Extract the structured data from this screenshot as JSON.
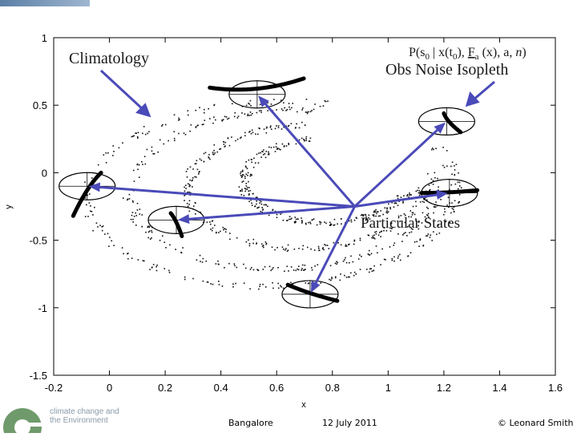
{
  "chart_data": {
    "type": "scatter",
    "xlabel": "x",
    "ylabel": "y",
    "xlim": [
      -0.2,
      1.6
    ],
    "ylim": [
      -1.5,
      1
    ],
    "xticks": [
      "-0.2",
      "0",
      "0.2",
      "0.4",
      "0.6",
      "0.8",
      "1",
      "1.2",
      "1.4",
      "1.6"
    ],
    "yticks": [
      "1",
      "0.5",
      "0",
      "-0.5",
      "-1",
      "-1.5"
    ],
    "grid": false,
    "ensembles": [
      {
        "cx": 0.53,
        "cy": 0.58
      },
      {
        "cx": 1.21,
        "cy": 0.38
      },
      {
        "cx": -0.08,
        "cy": -0.1
      },
      {
        "cx": 1.22,
        "cy": -0.15
      },
      {
        "cx": 0.24,
        "cy": -0.35
      },
      {
        "cx": 0.72,
        "cy": -0.9
      }
    ],
    "hub": {
      "x": 0.88,
      "y": -0.25
    },
    "annotations": {
      "climatology": "Climatology",
      "formula": "P(s0 | x(t0), Fa(x), a, n)",
      "obs_noise": "Obs Noise Isopleth",
      "particular_states": "Particular States"
    }
  },
  "formula_parts": {
    "p_open": "P(s",
    "sub0a": "0",
    "mid1": " | x(t",
    "sub0b": "0",
    "mid2": "), ",
    "f": "F",
    "sub_a": "a",
    "mid3": " (x), a, ",
    "n": "n",
    "close": ")"
  },
  "footer": {
    "location": "Bangalore",
    "date": "12 July 2011",
    "credit": "© Leonard Smith"
  },
  "logo": {
    "line1": "climate change and",
    "line2": "the Environment"
  },
  "colors": {
    "arrow": "#4a4ab8",
    "axis": "#000000"
  }
}
